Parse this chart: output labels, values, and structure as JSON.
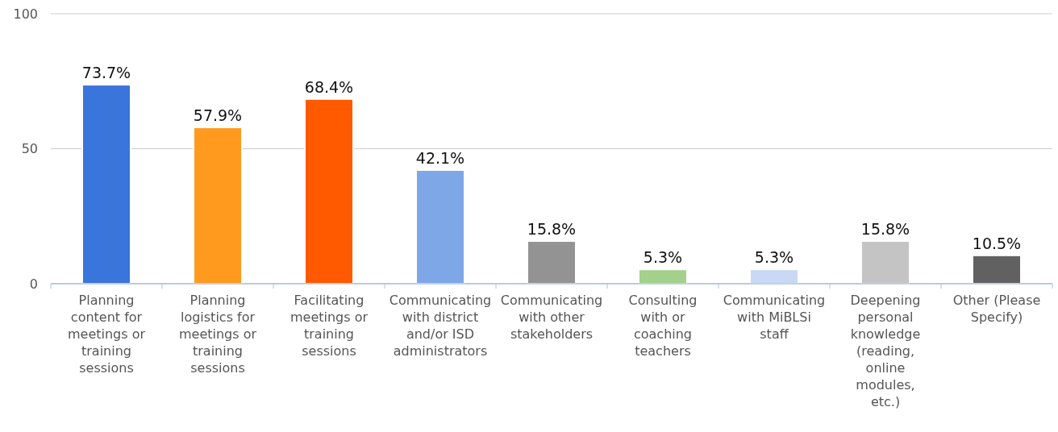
{
  "chart_data": {
    "type": "bar",
    "categories": [
      "Planning content for meetings or training sessions",
      "Planning logistics for meetings or training sessions",
      "Facilitating meetings or training sessions",
      "Communicating with district and/or ISD administrators",
      "Communicating with other stakeholders",
      "Consulting with or coaching teachers",
      "Communicating with MiBLSi staff",
      "Deepening personal knowledge (reading, online modules, etc.)",
      "Other (Please Specify)"
    ],
    "values": [
      73.7,
      57.9,
      68.4,
      42.1,
      15.8,
      5.3,
      5.3,
      15.8,
      10.5
    ],
    "colors": [
      "#3a75dc",
      "#ff9a1f",
      "#ff5a00",
      "#7ea7e8",
      "#939393",
      "#a3d08a",
      "#c8d8f5",
      "#c4c4c4",
      "#616161"
    ],
    "value_labels": [
      "73.7%",
      "57.9%",
      "68.4%",
      "42.1%",
      "15.8%",
      "5.3%",
      "5.3%",
      "15.8%",
      "10.5%"
    ],
    "ylim": [
      0,
      100
    ],
    "yticks": [
      0,
      50,
      100
    ],
    "grid": "y"
  }
}
